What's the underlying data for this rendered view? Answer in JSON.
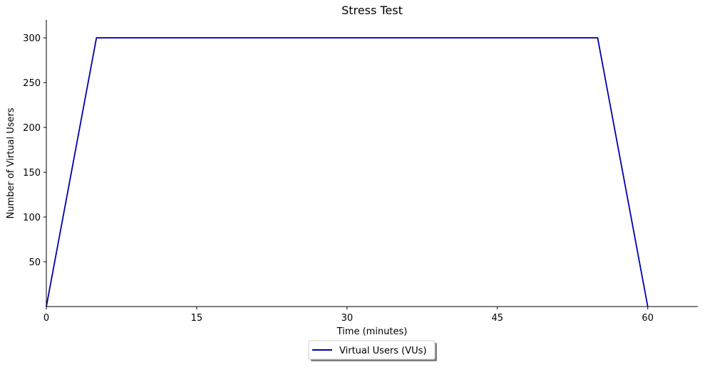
{
  "chart_data": {
    "type": "line",
    "title": "Stress Test",
    "xlabel": "Time (minutes)",
    "ylabel": "Number of Virtual Users",
    "xlim": [
      0,
      65
    ],
    "ylim": [
      0,
      320
    ],
    "xticks": [
      0,
      15,
      30,
      45,
      60
    ],
    "yticks": [
      50,
      100,
      150,
      200,
      250,
      300
    ],
    "grid": false,
    "legend_position": "bottom-center",
    "series": [
      {
        "name": "Virtual Users (VUs)",
        "color": "#0000aa",
        "x": [
          0,
          5,
          55,
          60
        ],
        "y": [
          0,
          300,
          300,
          0
        ]
      }
    ]
  }
}
